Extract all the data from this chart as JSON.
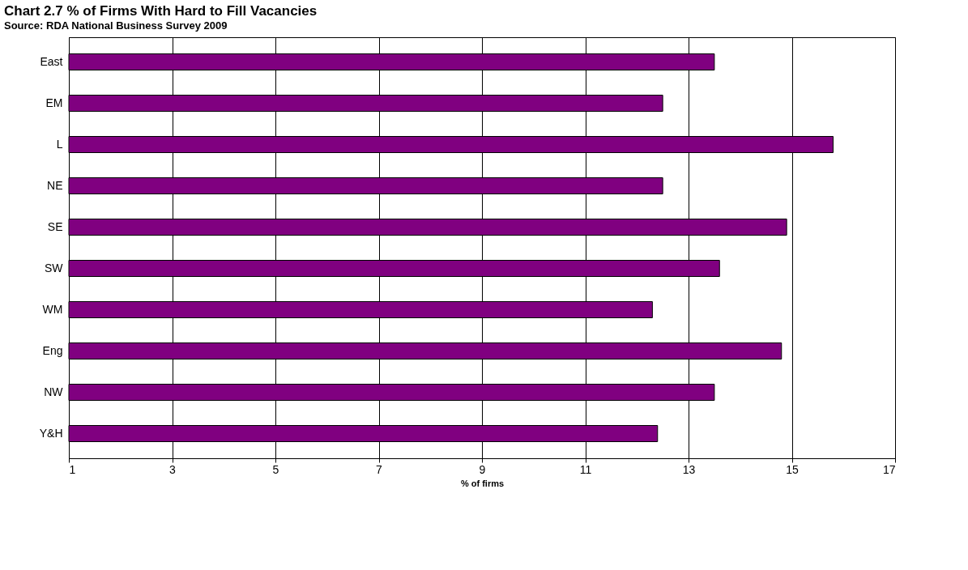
{
  "chart_data": {
    "type": "bar",
    "orientation": "horizontal",
    "title": "Chart 2.7  % of Firms With Hard to Fill Vacancies",
    "subtitle": "Source: RDA National Business Survey 2009",
    "xlabel": "% of firms",
    "categories": [
      "East",
      "EM",
      "L",
      "NE",
      "SE",
      "SW",
      "WM",
      "Eng",
      "NW",
      "Y&H"
    ],
    "values": [
      13.5,
      12.5,
      15.8,
      12.5,
      14.9,
      13.6,
      12.3,
      14.8,
      13.5,
      12.4
    ],
    "color": "#800080",
    "xlim": [
      1,
      17
    ],
    "xticks": [
      1,
      3,
      5,
      7,
      9,
      11,
      13,
      15,
      17
    ],
    "grid": "x"
  }
}
